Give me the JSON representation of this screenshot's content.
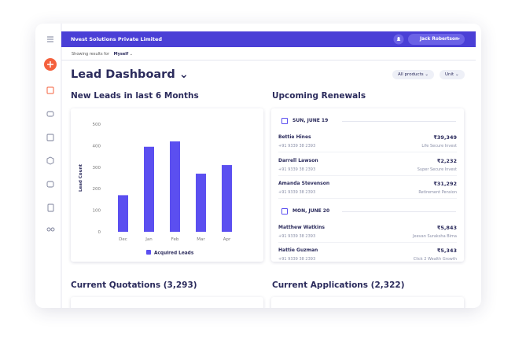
{
  "header": {
    "company": "Nvest Solutions Private Limited",
    "user": "Jack Robertson"
  },
  "filter": {
    "label": "Showing results for",
    "value": "Myself"
  },
  "page": {
    "title": "Lead Dashboard",
    "filters": [
      "All products",
      "Unit"
    ]
  },
  "chart_data": {
    "type": "bar",
    "title": "New Leads in last 6 Months",
    "y_label": "Lead Count",
    "categories": [
      "Dec",
      "Jan",
      "Feb",
      "Mar",
      "Apr"
    ],
    "series": [
      {
        "name": "Acquired Leads",
        "color": "#5b4ff0",
        "values": [
          170,
          395,
          420,
          270,
          310
        ]
      }
    ],
    "ylim": [
      0,
      500
    ],
    "yticks": [
      0,
      100,
      200,
      300,
      400,
      500
    ],
    "legend": "bottom"
  },
  "renewals": {
    "title": "Upcoming Renewals",
    "groups": [
      {
        "date": "SUN, JUNE 19",
        "items": [
          {
            "name": "Bettie Hines",
            "phone": "+91 9339 38 2393",
            "amount": "₹39,349",
            "product": "Life Secure Invest"
          },
          {
            "name": "Darrell Lawson",
            "phone": "+91 9339 38 2393",
            "amount": "₹2,232",
            "product": "Super Secure Invest"
          },
          {
            "name": "Amanda Stevenson",
            "phone": "+91 9339 38 2393",
            "amount": "₹31,292",
            "product": "Retirement Pension"
          }
        ]
      },
      {
        "date": "MON, JUNE 20",
        "items": [
          {
            "name": "Matthew Watkins",
            "phone": "+91 9339 38 2393",
            "amount": "₹5,843",
            "product": "Jeevan Suraksha Bima"
          },
          {
            "name": "Hattie Guzman",
            "phone": "+91 9339 38 2393",
            "amount": "₹5,343",
            "product": "Click 2 Wealth Growth"
          }
        ]
      }
    ]
  },
  "quotations": {
    "title": "Current Quotations (3,293)"
  },
  "applications": {
    "title": "Current Applications (2,322)"
  }
}
